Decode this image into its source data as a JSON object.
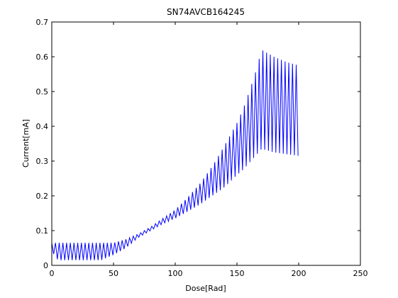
{
  "chart_data": {
    "type": "line",
    "title": "SN74AVCB164245",
    "xlabel": "Dose[Rad]",
    "ylabel": "Current[mA]",
    "xlim": [
      0,
      250
    ],
    "ylim": [
      0,
      0.7
    ],
    "xticks": [
      0,
      50,
      100,
      150,
      200,
      250
    ],
    "yticks": [
      0,
      0.1,
      0.2,
      0.3,
      0.4,
      0.5,
      0.6,
      0.7
    ],
    "xtick_labels": [
      "0",
      "50",
      "100",
      "150",
      "200",
      "250"
    ],
    "ytick_labels": [
      "0",
      "0.1",
      "0.2",
      "0.3",
      "0.4",
      "0.5",
      "0.6",
      "0.7"
    ],
    "grid": false,
    "series": [
      {
        "color": "#0000ff",
        "style": "oscillating",
        "upper_envelope": {
          "x": [
            0,
            5,
            10,
            20,
            30,
            40,
            50,
            60,
            70,
            80,
            90,
            100,
            110,
            120,
            130,
            140,
            150,
            155,
            160,
            165,
            170,
            175,
            180,
            190,
            200
          ],
          "y": [
            0.065,
            0.065,
            0.065,
            0.065,
            0.065,
            0.065,
            0.065,
            0.075,
            0.09,
            0.11,
            0.135,
            0.16,
            0.195,
            0.235,
            0.285,
            0.345,
            0.41,
            0.45,
            0.5,
            0.555,
            0.62,
            0.61,
            0.6,
            0.585,
            0.575
          ]
        },
        "lower_envelope": {
          "x": [
            0,
            5,
            10,
            20,
            30,
            40,
            50,
            60,
            70,
            80,
            90,
            100,
            110,
            120,
            130,
            140,
            150,
            155,
            160,
            165,
            170,
            175,
            180,
            190,
            200
          ],
          "y": [
            0.04,
            0.015,
            0.015,
            0.015,
            0.015,
            0.015,
            0.03,
            0.05,
            0.08,
            0.1,
            0.12,
            0.135,
            0.155,
            0.175,
            0.2,
            0.225,
            0.26,
            0.275,
            0.295,
            0.315,
            0.335,
            0.33,
            0.325,
            0.32,
            0.315
          ]
        }
      }
    ]
  }
}
